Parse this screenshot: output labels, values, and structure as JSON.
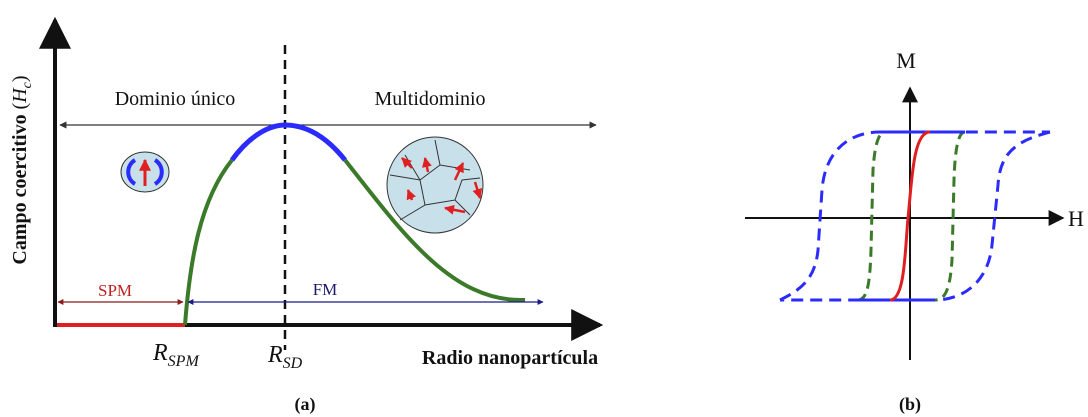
{
  "panel_a": {
    "y_label": {
      "text": "Campo coercitivo",
      "prefix": "(",
      "base": "H",
      "sub": "c",
      "suffix": ")"
    },
    "x_label": "Radio nanopartícula",
    "region_single": "Dominio único",
    "region_multi": "Multidominio",
    "spm": "SPM",
    "fm": "FM",
    "r_spm": {
      "base": "R",
      "sub": "SPM"
    },
    "r_sd": {
      "base": "R",
      "sub": "SD"
    },
    "caption": "(a)"
  },
  "panel_b": {
    "y_axis": "M",
    "x_axis": "H",
    "caption": "(b)"
  }
}
